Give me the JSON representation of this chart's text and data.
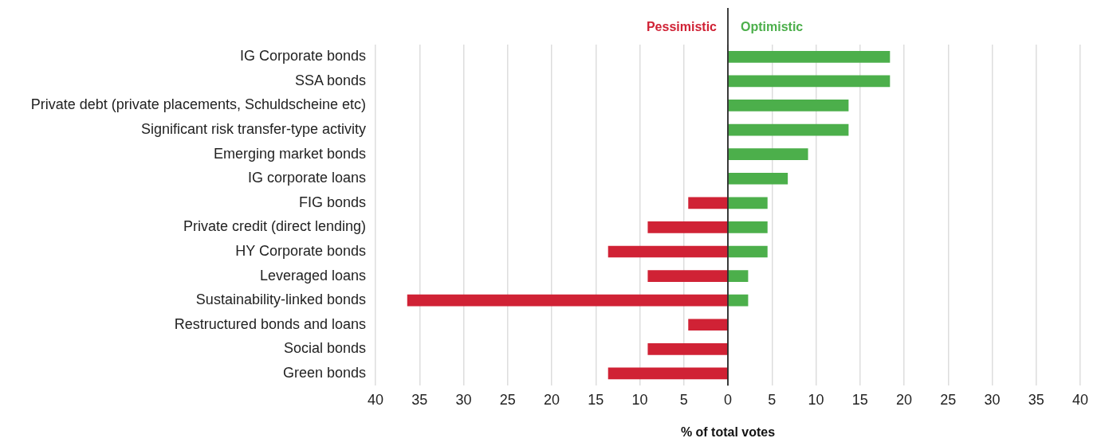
{
  "chart_data": {
    "type": "bar",
    "orientation": "horizontal",
    "stacked": true,
    "categories": [
      "IG Corporate bonds",
      "SSA bonds",
      "Private debt (private placements, Schuldscheine etc)",
      "Significant risk transfer-type activity",
      "Emerging market bonds",
      "IG corporate loans",
      "FIG bonds",
      "Private credit (direct lending)",
      "HY Corporate bonds",
      "Leveraged loans",
      "Sustainability-linked bonds",
      "Restructured bonds and loans",
      "Social bonds",
      "Green bonds"
    ],
    "series": [
      {
        "name": "Pessimistic",
        "color": "#d02235",
        "values": [
          null,
          null,
          null,
          null,
          null,
          null,
          -4.5,
          -9.1,
          -13.6,
          -9.1,
          -36.4,
          -4.5,
          -9.1,
          -13.6
        ]
      },
      {
        "name": "Optimistic",
        "color": "#4caf4b",
        "values": [
          18.4,
          18.4,
          13.7,
          13.7,
          9.1,
          6.8,
          4.5,
          4.5,
          4.5,
          2.3,
          2.3,
          null,
          null,
          null
        ]
      }
    ],
    "xlim": [
      -40,
      40
    ],
    "xticks": [
      {
        "value": -40,
        "label": "40"
      },
      {
        "value": -35,
        "label": "35"
      },
      {
        "value": -30,
        "label": "30"
      },
      {
        "value": -25,
        "label": "25"
      },
      {
        "value": -20,
        "label": "20"
      },
      {
        "value": -15,
        "label": "15"
      },
      {
        "value": -10,
        "label": "10"
      },
      {
        "value": -5,
        "label": "5"
      },
      0,
      5,
      10,
      15,
      20,
      25,
      30,
      35,
      40
    ],
    "xlabel": "% of total votes",
    "grid": "x",
    "ref_lines": [
      {
        "axis": "x",
        "value": 0,
        "color": "#000000"
      }
    ]
  }
}
